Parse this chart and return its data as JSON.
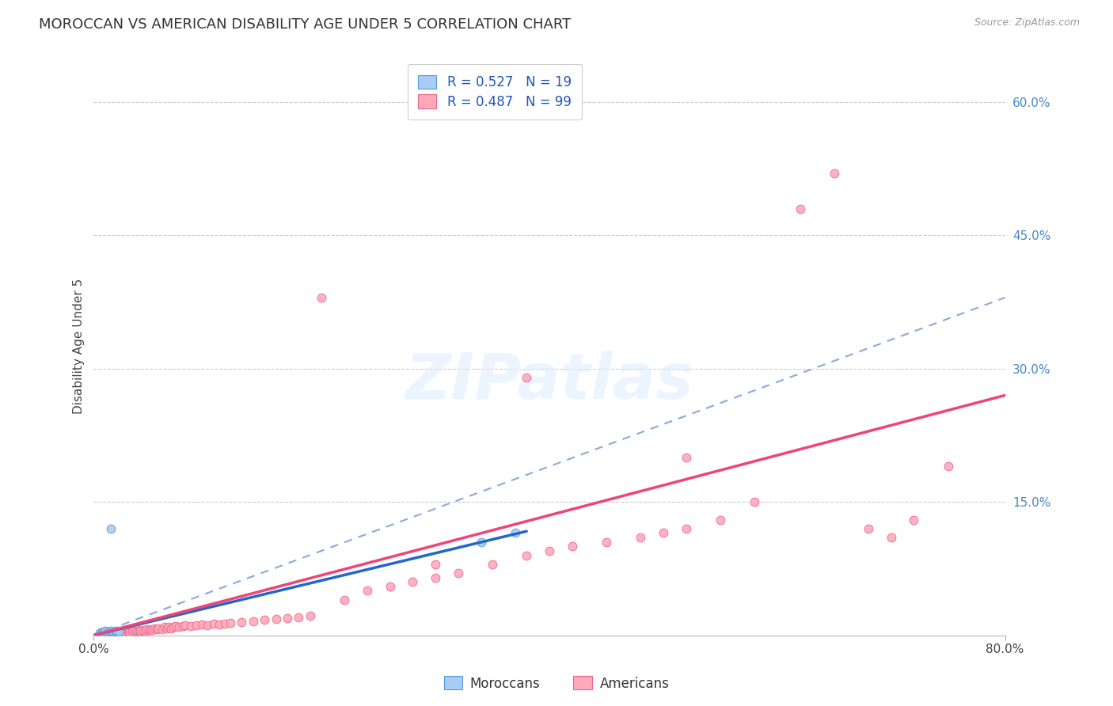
{
  "title": "MOROCCAN VS AMERICAN DISABILITY AGE UNDER 5 CORRELATION CHART",
  "source": "Source: ZipAtlas.com",
  "ylabel": "Disability Age Under 5",
  "xlim": [
    0.0,
    0.8
  ],
  "ylim": [
    0.0,
    0.65
  ],
  "moroccan_color": "#aaccf0",
  "moroccan_edge_color": "#5599dd",
  "moroccan_line_color": "#2266cc",
  "american_color": "#ffaabb",
  "american_edge_color": "#ee6688",
  "american_line_color": "#ee4477",
  "dashed_line_color": "#88aadd",
  "moroccan_R": 0.527,
  "moroccan_N": 19,
  "american_R": 0.487,
  "american_N": 99,
  "moroccan_x": [
    0.005,
    0.007,
    0.008,
    0.009,
    0.01,
    0.01,
    0.012,
    0.013,
    0.015,
    0.015,
    0.017,
    0.018,
    0.02,
    0.02,
    0.02,
    0.022,
    0.015,
    0.34,
    0.37
  ],
  "moroccan_y": [
    0.002,
    0.003,
    0.004,
    0.002,
    0.003,
    0.005,
    0.003,
    0.004,
    0.003,
    0.005,
    0.003,
    0.004,
    0.003,
    0.004,
    0.005,
    0.004,
    0.12,
    0.105,
    0.115
  ],
  "american_x": [
    0.005,
    0.006,
    0.007,
    0.008,
    0.009,
    0.01,
    0.01,
    0.011,
    0.012,
    0.012,
    0.013,
    0.014,
    0.015,
    0.015,
    0.016,
    0.017,
    0.018,
    0.019,
    0.02,
    0.02,
    0.021,
    0.022,
    0.023,
    0.025,
    0.025,
    0.026,
    0.027,
    0.028,
    0.03,
    0.03,
    0.031,
    0.032,
    0.034,
    0.035,
    0.037,
    0.038,
    0.04,
    0.04,
    0.041,
    0.043,
    0.045,
    0.046,
    0.048,
    0.05,
    0.051,
    0.053,
    0.055,
    0.057,
    0.06,
    0.062,
    0.064,
    0.066,
    0.068,
    0.07,
    0.072,
    0.075,
    0.078,
    0.08,
    0.085,
    0.09,
    0.095,
    0.1,
    0.105,
    0.11,
    0.115,
    0.12,
    0.13,
    0.14,
    0.15,
    0.16,
    0.17,
    0.18,
    0.19,
    0.2,
    0.22,
    0.24,
    0.26,
    0.28,
    0.3,
    0.32,
    0.35,
    0.38,
    0.4,
    0.42,
    0.45,
    0.48,
    0.5,
    0.52,
    0.55,
    0.58,
    0.62,
    0.65,
    0.68,
    0.7,
    0.72,
    0.75,
    0.38,
    0.52,
    0.3
  ],
  "american_y": [
    0.002,
    0.003,
    0.002,
    0.003,
    0.002,
    0.003,
    0.004,
    0.003,
    0.002,
    0.004,
    0.003,
    0.002,
    0.003,
    0.004,
    0.003,
    0.004,
    0.003,
    0.004,
    0.002,
    0.004,
    0.003,
    0.004,
    0.003,
    0.003,
    0.005,
    0.004,
    0.003,
    0.004,
    0.003,
    0.005,
    0.004,
    0.003,
    0.004,
    0.005,
    0.004,
    0.005,
    0.004,
    0.006,
    0.005,
    0.006,
    0.005,
    0.007,
    0.006,
    0.007,
    0.006,
    0.008,
    0.007,
    0.008,
    0.007,
    0.009,
    0.008,
    0.009,
    0.008,
    0.009,
    0.01,
    0.009,
    0.01,
    0.011,
    0.01,
    0.011,
    0.012,
    0.011,
    0.013,
    0.012,
    0.013,
    0.014,
    0.015,
    0.016,
    0.017,
    0.018,
    0.019,
    0.02,
    0.022,
    0.38,
    0.04,
    0.05,
    0.055,
    0.06,
    0.065,
    0.07,
    0.08,
    0.09,
    0.095,
    0.1,
    0.105,
    0.11,
    0.115,
    0.12,
    0.13,
    0.15,
    0.48,
    0.52,
    0.12,
    0.11,
    0.13,
    0.19,
    0.29,
    0.2,
    0.08
  ],
  "moroccan_line_x": [
    0.0,
    0.38
  ],
  "moroccan_line_y": [
    0.0,
    0.117
  ],
  "american_line_x": [
    0.0,
    0.8
  ],
  "american_line_y": [
    0.0,
    0.27
  ],
  "dashed_line_x": [
    0.0,
    0.8
  ],
  "dashed_line_y": [
    0.0,
    0.38
  ],
  "watermark_text": "ZIPatlas",
  "background_color": "#ffffff",
  "grid_color": "#cccccc",
  "title_fontsize": 13,
  "axis_label_fontsize": 11,
  "tick_fontsize": 11,
  "legend_fontsize": 12,
  "marker_size": 60
}
